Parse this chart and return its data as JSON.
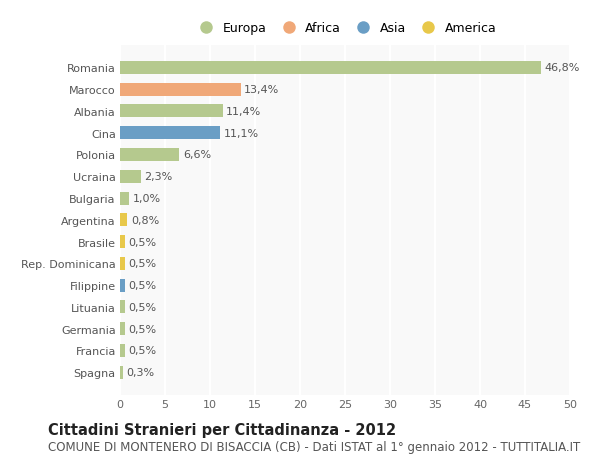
{
  "categories": [
    "Spagna",
    "Francia",
    "Germania",
    "Lituania",
    "Filippine",
    "Rep. Dominicana",
    "Brasile",
    "Argentina",
    "Bulgaria",
    "Ucraina",
    "Polonia",
    "Cina",
    "Albania",
    "Marocco",
    "Romania"
  ],
  "values": [
    0.3,
    0.5,
    0.5,
    0.5,
    0.5,
    0.5,
    0.5,
    0.8,
    1.0,
    2.3,
    6.6,
    11.1,
    11.4,
    13.4,
    46.8
  ],
  "labels": [
    "0,3%",
    "0,5%",
    "0,5%",
    "0,5%",
    "0,5%",
    "0,5%",
    "0,5%",
    "0,8%",
    "1,0%",
    "2,3%",
    "6,6%",
    "11,1%",
    "11,4%",
    "13,4%",
    "46,8%"
  ],
  "colors": [
    "#b5c98e",
    "#b5c98e",
    "#b5c98e",
    "#b5c98e",
    "#6a9ec5",
    "#e8c84a",
    "#e8c84a",
    "#e8c84a",
    "#b5c98e",
    "#b5c98e",
    "#b5c98e",
    "#6a9ec5",
    "#b5c98e",
    "#f0a878",
    "#b5c98e"
  ],
  "legend_labels": [
    "Europa",
    "Africa",
    "Asia",
    "America"
  ],
  "legend_colors": [
    "#b5c98e",
    "#f0a878",
    "#6a9ec5",
    "#e8c84a"
  ],
  "title": "Cittadini Stranieri per Cittadinanza - 2012",
  "subtitle": "COMUNE DI MONTENERO DI BISACCIA (CB) - Dati ISTAT al 1° gennaio 2012 - TUTTITALIA.IT",
  "xlim": [
    0,
    50
  ],
  "xticks": [
    0,
    5,
    10,
    15,
    20,
    25,
    30,
    35,
    40,
    45,
    50
  ],
  "background_color": "#ffffff",
  "plot_background": "#f9f9f9",
  "grid_color": "#ffffff",
  "bar_height": 0.6,
  "title_fontsize": 10.5,
  "subtitle_fontsize": 8.5,
  "label_fontsize": 8,
  "tick_fontsize": 8,
  "legend_fontsize": 9
}
